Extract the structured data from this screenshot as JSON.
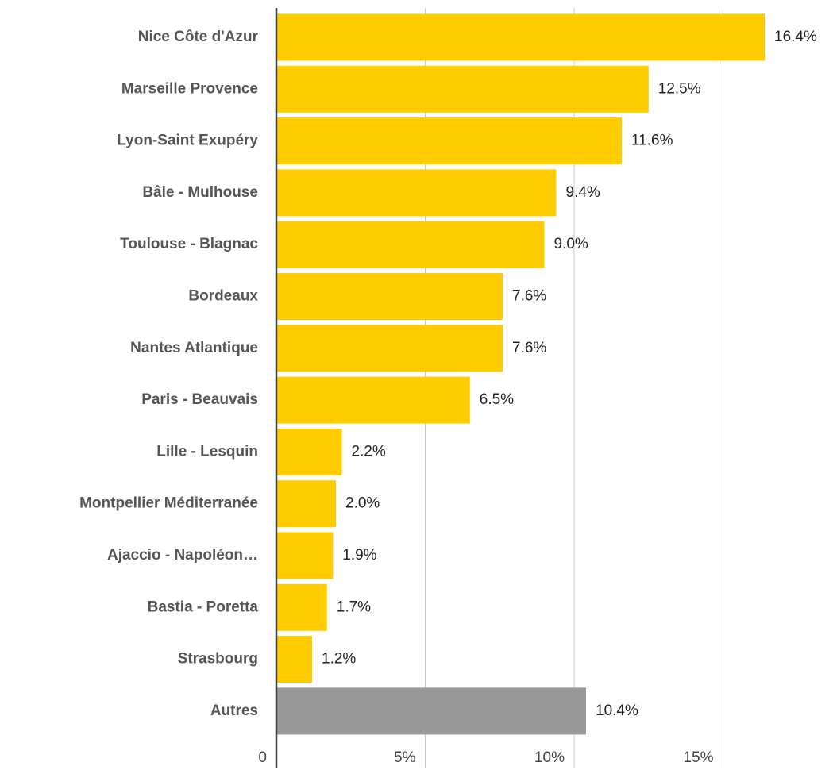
{
  "chart_data": {
    "type": "bar",
    "orientation": "horizontal",
    "categories": [
      "Nice Côte d'Azur",
      "Marseille Provence",
      "Lyon-Saint Exupéry",
      "Bâle - Mulhouse",
      "Toulouse - Blagnac",
      "Bordeaux",
      "Nantes Atlantique",
      "Paris - Beauvais",
      "Lille - Lesquin",
      "Montpellier Méditerranée",
      "Ajaccio - Napoléon…",
      "Bastia - Poretta",
      "Strasbourg",
      "Autres"
    ],
    "values": [
      16.4,
      12.5,
      11.6,
      9.4,
      9.0,
      7.6,
      7.6,
      6.5,
      2.2,
      2.0,
      1.9,
      1.7,
      1.2,
      10.4
    ],
    "value_labels": [
      "16.4%",
      "12.5%",
      "11.6%",
      "9.4%",
      "9.0%",
      "7.6%",
      "7.6%",
      "6.5%",
      "2.2%",
      "2.0%",
      "1.9%",
      "1.7%",
      "1.2%",
      "10.4%"
    ],
    "colors": [
      "#ffcc00",
      "#ffcc00",
      "#ffcc00",
      "#ffcc00",
      "#ffcc00",
      "#ffcc00",
      "#ffcc00",
      "#ffcc00",
      "#ffcc00",
      "#ffcc00",
      "#ffcc00",
      "#ffcc00",
      "#ffcc00",
      "#999999"
    ],
    "xlim": [
      0,
      18
    ],
    "xticks": [
      0,
      {
        "value": 5,
        "label": "5%"
      },
      {
        "value": 10,
        "label": "10%"
      },
      {
        "value": 15,
        "label": "15%"
      }
    ],
    "grid": true
  }
}
